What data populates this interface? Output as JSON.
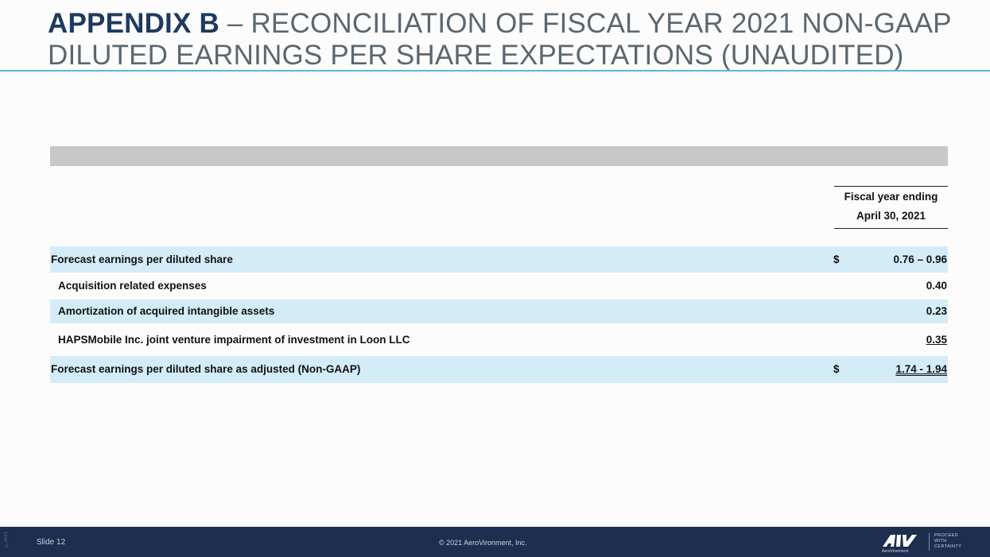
{
  "title": {
    "bold": "APPENDIX B",
    "rest": " – RECONCILIATION OF FISCAL YEAR 2021 NON-GAAP DILUTED EARNINGS PER SHARE EXPECTATIONS (UNAUDITED)"
  },
  "table": {
    "column_header": [
      "Fiscal year ending",
      "April 30, 2021"
    ],
    "rows": [
      {
        "label": "Forecast earnings per diluted share",
        "currency": "$",
        "value": "0.76 – 0.96"
      },
      {
        "label": "Acquisition related expenses",
        "currency": "",
        "value": "0.40"
      },
      {
        "label": "Amortization of acquired intangible assets",
        "currency": "",
        "value": "0.23"
      },
      {
        "label": "HAPSMobile Inc. joint venture impairment of investment in Loon LLC",
        "currency": "",
        "value": "0.35"
      },
      {
        "label": "Forecast earnings per diluted share as adjusted (Non-GAAP)",
        "currency": "$",
        "value": "1.74 - 1.94"
      }
    ]
  },
  "footer": {
    "slide": "Slide 12",
    "copyright": "© 2021 AeroVironment, Inc.",
    "side_code": "©2021",
    "logo_text": "AeroVironment",
    "tagline": [
      "PROCEED",
      "WITH",
      "CERTAINTY"
    ]
  },
  "colors": {
    "title_strong": "#1e3a5f",
    "title_light": "#5b6770",
    "rule": "#5bb8d8",
    "row_shade": "#d4ecf8",
    "header_bar": "#c8c8c8",
    "footer_bg": "#1d2e4e"
  }
}
